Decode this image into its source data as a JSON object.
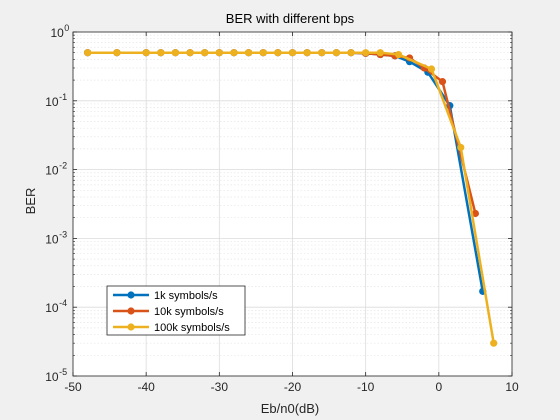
{
  "chart_data": {
    "type": "line",
    "title": "BER with different bps",
    "xlabel": "Eb/n0(dB)",
    "ylabel": "BER",
    "xlim": [
      -50,
      10
    ],
    "ylim": [
      1e-05,
      1
    ],
    "yscale": "log",
    "xticks": [
      -50,
      -40,
      -30,
      -20,
      -10,
      0,
      10
    ],
    "yticks": [
      {
        "value": 1.0,
        "base": "10",
        "exp": "0"
      },
      {
        "value": 0.1,
        "base": "10",
        "exp": "-1"
      },
      {
        "value": 0.01,
        "base": "10",
        "exp": "-2"
      },
      {
        "value": 0.001,
        "base": "10",
        "exp": "-3"
      },
      {
        "value": 0.0001,
        "base": "10",
        "exp": "-4"
      },
      {
        "value": 1e-05,
        "base": "10",
        "exp": "-5"
      }
    ],
    "grid": true,
    "legend_position": "bottom-left",
    "series": [
      {
        "name": "1k symbols/s",
        "color": "#0072BD",
        "x": [
          -48,
          -44,
          -40,
          -38,
          -36,
          -34,
          -32,
          -30,
          -28,
          -26,
          -24,
          -22,
          -20,
          -18,
          -16,
          -14,
          -12,
          -10,
          -8,
          -6,
          -4,
          -1.5,
          1.5,
          6
        ],
        "y": [
          0.5,
          0.5,
          0.5,
          0.5,
          0.5,
          0.5,
          0.5,
          0.5,
          0.5,
          0.5,
          0.5,
          0.5,
          0.5,
          0.5,
          0.5,
          0.5,
          0.5,
          0.49,
          0.47,
          0.45,
          0.37,
          0.26,
          0.085,
          0.00017
        ]
      },
      {
        "name": "10k symbols/s",
        "color": "#D95319",
        "x": [
          -48,
          -44,
          -40,
          -38,
          -36,
          -34,
          -32,
          -30,
          -28,
          -26,
          -24,
          -22,
          -20,
          -18,
          -16,
          -14,
          -12,
          -10,
          -8,
          -6,
          -4,
          -2,
          0.5,
          5
        ],
        "y": [
          0.5,
          0.5,
          0.5,
          0.5,
          0.5,
          0.5,
          0.5,
          0.5,
          0.5,
          0.5,
          0.5,
          0.5,
          0.5,
          0.5,
          0.5,
          0.5,
          0.5,
          0.49,
          0.47,
          0.45,
          0.42,
          0.3,
          0.19,
          0.0023
        ]
      },
      {
        "name": "100k symbols/s",
        "color": "#EDB120",
        "x": [
          -48,
          -44,
          -40,
          -38,
          -36,
          -34,
          -32,
          -30,
          -28,
          -26,
          -24,
          -22,
          -20,
          -18,
          -16,
          -14,
          -12,
          -10,
          -8,
          -5.5,
          -1,
          3,
          7.5
        ],
        "y": [
          0.5,
          0.5,
          0.5,
          0.5,
          0.5,
          0.5,
          0.5,
          0.5,
          0.5,
          0.5,
          0.5,
          0.5,
          0.5,
          0.5,
          0.5,
          0.5,
          0.5,
          0.5,
          0.5,
          0.47,
          0.29,
          0.021,
          3e-05
        ]
      }
    ]
  }
}
